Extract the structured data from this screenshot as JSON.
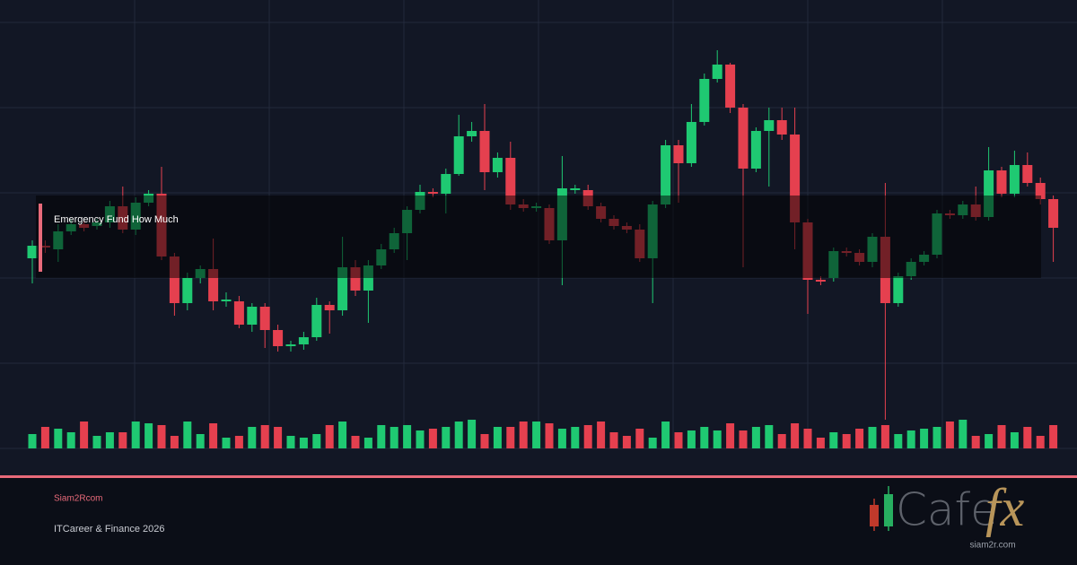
{
  "chart_data": {
    "type": "candlestick",
    "overlay_label": "Emergency Fund How Much",
    "up_color": "#1fc972",
    "down_color": "#e5404f",
    "ylim": [
      0,
      500
    ],
    "open": [
      212,
      226,
      222,
      242,
      250,
      248,
      252,
      270,
      244,
      274,
      284,
      214,
      162,
      190,
      200,
      164,
      164,
      138,
      158,
      132,
      114,
      116,
      124,
      160,
      154,
      202,
      176,
      204,
      222,
      240,
      266,
      286,
      284,
      306,
      348,
      354,
      308,
      324,
      272,
      268,
      268,
      232,
      288,
      288,
      270,
      256,
      248,
      244,
      212,
      272,
      338,
      318,
      364,
      412,
      428,
      380,
      312,
      354,
      366,
      350,
      252,
      188,
      190,
      220,
      218,
      208,
      236,
      162,
      192,
      208,
      216,
      262,
      260,
      272,
      258,
      310,
      284,
      316,
      296,
      278
    ],
    "close": [
      226,
      224,
      242,
      250,
      246,
      252,
      270,
      244,
      274,
      284,
      214,
      162,
      190,
      200,
      164,
      166,
      138,
      158,
      132,
      114,
      116,
      124,
      160,
      154,
      202,
      176,
      204,
      222,
      240,
      266,
      286,
      284,
      306,
      348,
      354,
      308,
      324,
      272,
      268,
      270,
      232,
      290,
      290,
      270,
      256,
      248,
      244,
      212,
      272,
      338,
      318,
      364,
      412,
      428,
      380,
      312,
      354,
      366,
      350,
      252,
      188,
      186,
      220,
      218,
      208,
      236,
      162,
      192,
      208,
      216,
      262,
      260,
      272,
      258,
      310,
      284,
      316,
      296,
      278,
      246
    ],
    "high": [
      232,
      232,
      250,
      256,
      254,
      256,
      276,
      292,
      280,
      288,
      314,
      218,
      196,
      204,
      234,
      174,
      170,
      162,
      162,
      138,
      120,
      130,
      168,
      164,
      236,
      210,
      210,
      228,
      246,
      270,
      294,
      290,
      312,
      372,
      364,
      384,
      330,
      342,
      278,
      274,
      272,
      326,
      294,
      294,
      274,
      260,
      252,
      250,
      276,
      344,
      344,
      384,
      418,
      444,
      430,
      384,
      358,
      380,
      380,
      380,
      256,
      192,
      224,
      224,
      222,
      240,
      296,
      196,
      212,
      220,
      266,
      266,
      276,
      292,
      336,
      314,
      332,
      330,
      302,
      282
    ],
    "low": [
      184,
      218,
      208,
      238,
      242,
      244,
      246,
      240,
      238,
      270,
      210,
      148,
      154,
      184,
      154,
      158,
      134,
      130,
      112,
      108,
      108,
      110,
      120,
      128,
      148,
      170,
      140,
      200,
      218,
      210,
      262,
      280,
      262,
      304,
      342,
      288,
      302,
      266,
      264,
      264,
      228,
      182,
      284,
      266,
      252,
      244,
      240,
      208,
      162,
      268,
      274,
      314,
      360,
      408,
      374,
      202,
      308,
      292,
      344,
      222,
      150,
      182,
      186,
      214,
      204,
      202,
      32,
      158,
      188,
      204,
      212,
      256,
      256,
      254,
      254,
      280,
      280,
      292,
      272,
      208
    ],
    "volume": [
      16,
      24,
      22,
      18,
      30,
      14,
      18,
      18,
      30,
      28,
      26,
      14,
      30,
      16,
      28,
      12,
      14,
      24,
      26,
      24,
      14,
      12,
      16,
      26,
      30,
      14,
      12,
      26,
      24,
      26,
      20,
      22,
      24,
      30,
      32,
      16,
      24,
      24,
      30,
      30,
      28,
      22,
      24,
      26,
      30,
      18,
      14,
      22,
      12,
      30,
      18,
      20,
      24,
      20,
      28,
      20,
      24,
      26,
      16,
      28,
      22,
      12,
      18,
      16,
      22,
      24,
      26,
      16,
      20,
      22,
      24,
      30,
      32,
      14,
      16,
      26,
      18,
      24,
      14,
      26
    ]
  },
  "footer": {
    "site": "Siam2Rcom",
    "caption": "ITCareer & Finance 2026"
  },
  "logo": {
    "word": "Cafe",
    "accent": "fx",
    "url": "siam2r.com"
  }
}
